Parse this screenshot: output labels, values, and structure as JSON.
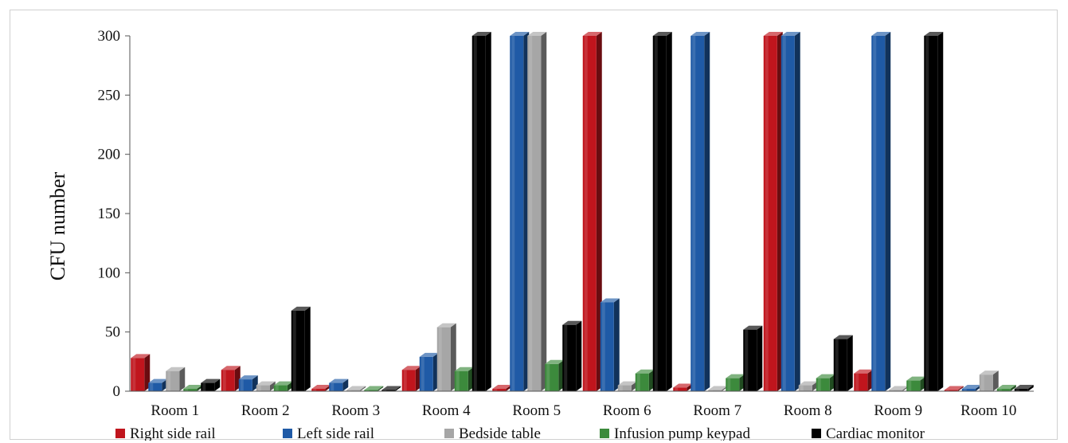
{
  "chart_data": {
    "type": "bar",
    "style": "3d-clustered-column",
    "title": "",
    "xlabel": "",
    "ylabel": "CFU number",
    "ylim": [
      0,
      300
    ],
    "yticks": [
      0,
      50,
      100,
      150,
      200,
      250,
      300
    ],
    "grid": false,
    "legend_position": "bottom",
    "categories": [
      "Room 1",
      "Room 2",
      "Room 3",
      "Room 4",
      "Room 5",
      "Room 6",
      "Room 7",
      "Room 8",
      "Room 9",
      "Room 10"
    ],
    "series": [
      {
        "name": "Right side rail",
        "color": "#c0151d",
        "values": [
          28,
          18,
          2,
          18,
          2,
          300,
          3,
          300,
          15,
          1
        ]
      },
      {
        "name": "Left side rail",
        "color": "#1f5aa6",
        "values": [
          7,
          10,
          7,
          29,
          300,
          75,
          300,
          300,
          300,
          2
        ]
      },
      {
        "name": "Bedside table",
        "color": "#a6a6a6",
        "values": [
          17,
          5,
          1,
          54,
          300,
          5,
          1,
          5,
          1,
          14
        ]
      },
      {
        "name": "Infusion pump keypad",
        "color": "#3c8a3c",
        "values": [
          2,
          5,
          1,
          17,
          23,
          15,
          11,
          11,
          9,
          2
        ]
      },
      {
        "name": "Cardiac monitor",
        "color": "#000000",
        "values": [
          7,
          68,
          1,
          300,
          56,
          300,
          52,
          44,
          300,
          2
        ]
      }
    ]
  }
}
